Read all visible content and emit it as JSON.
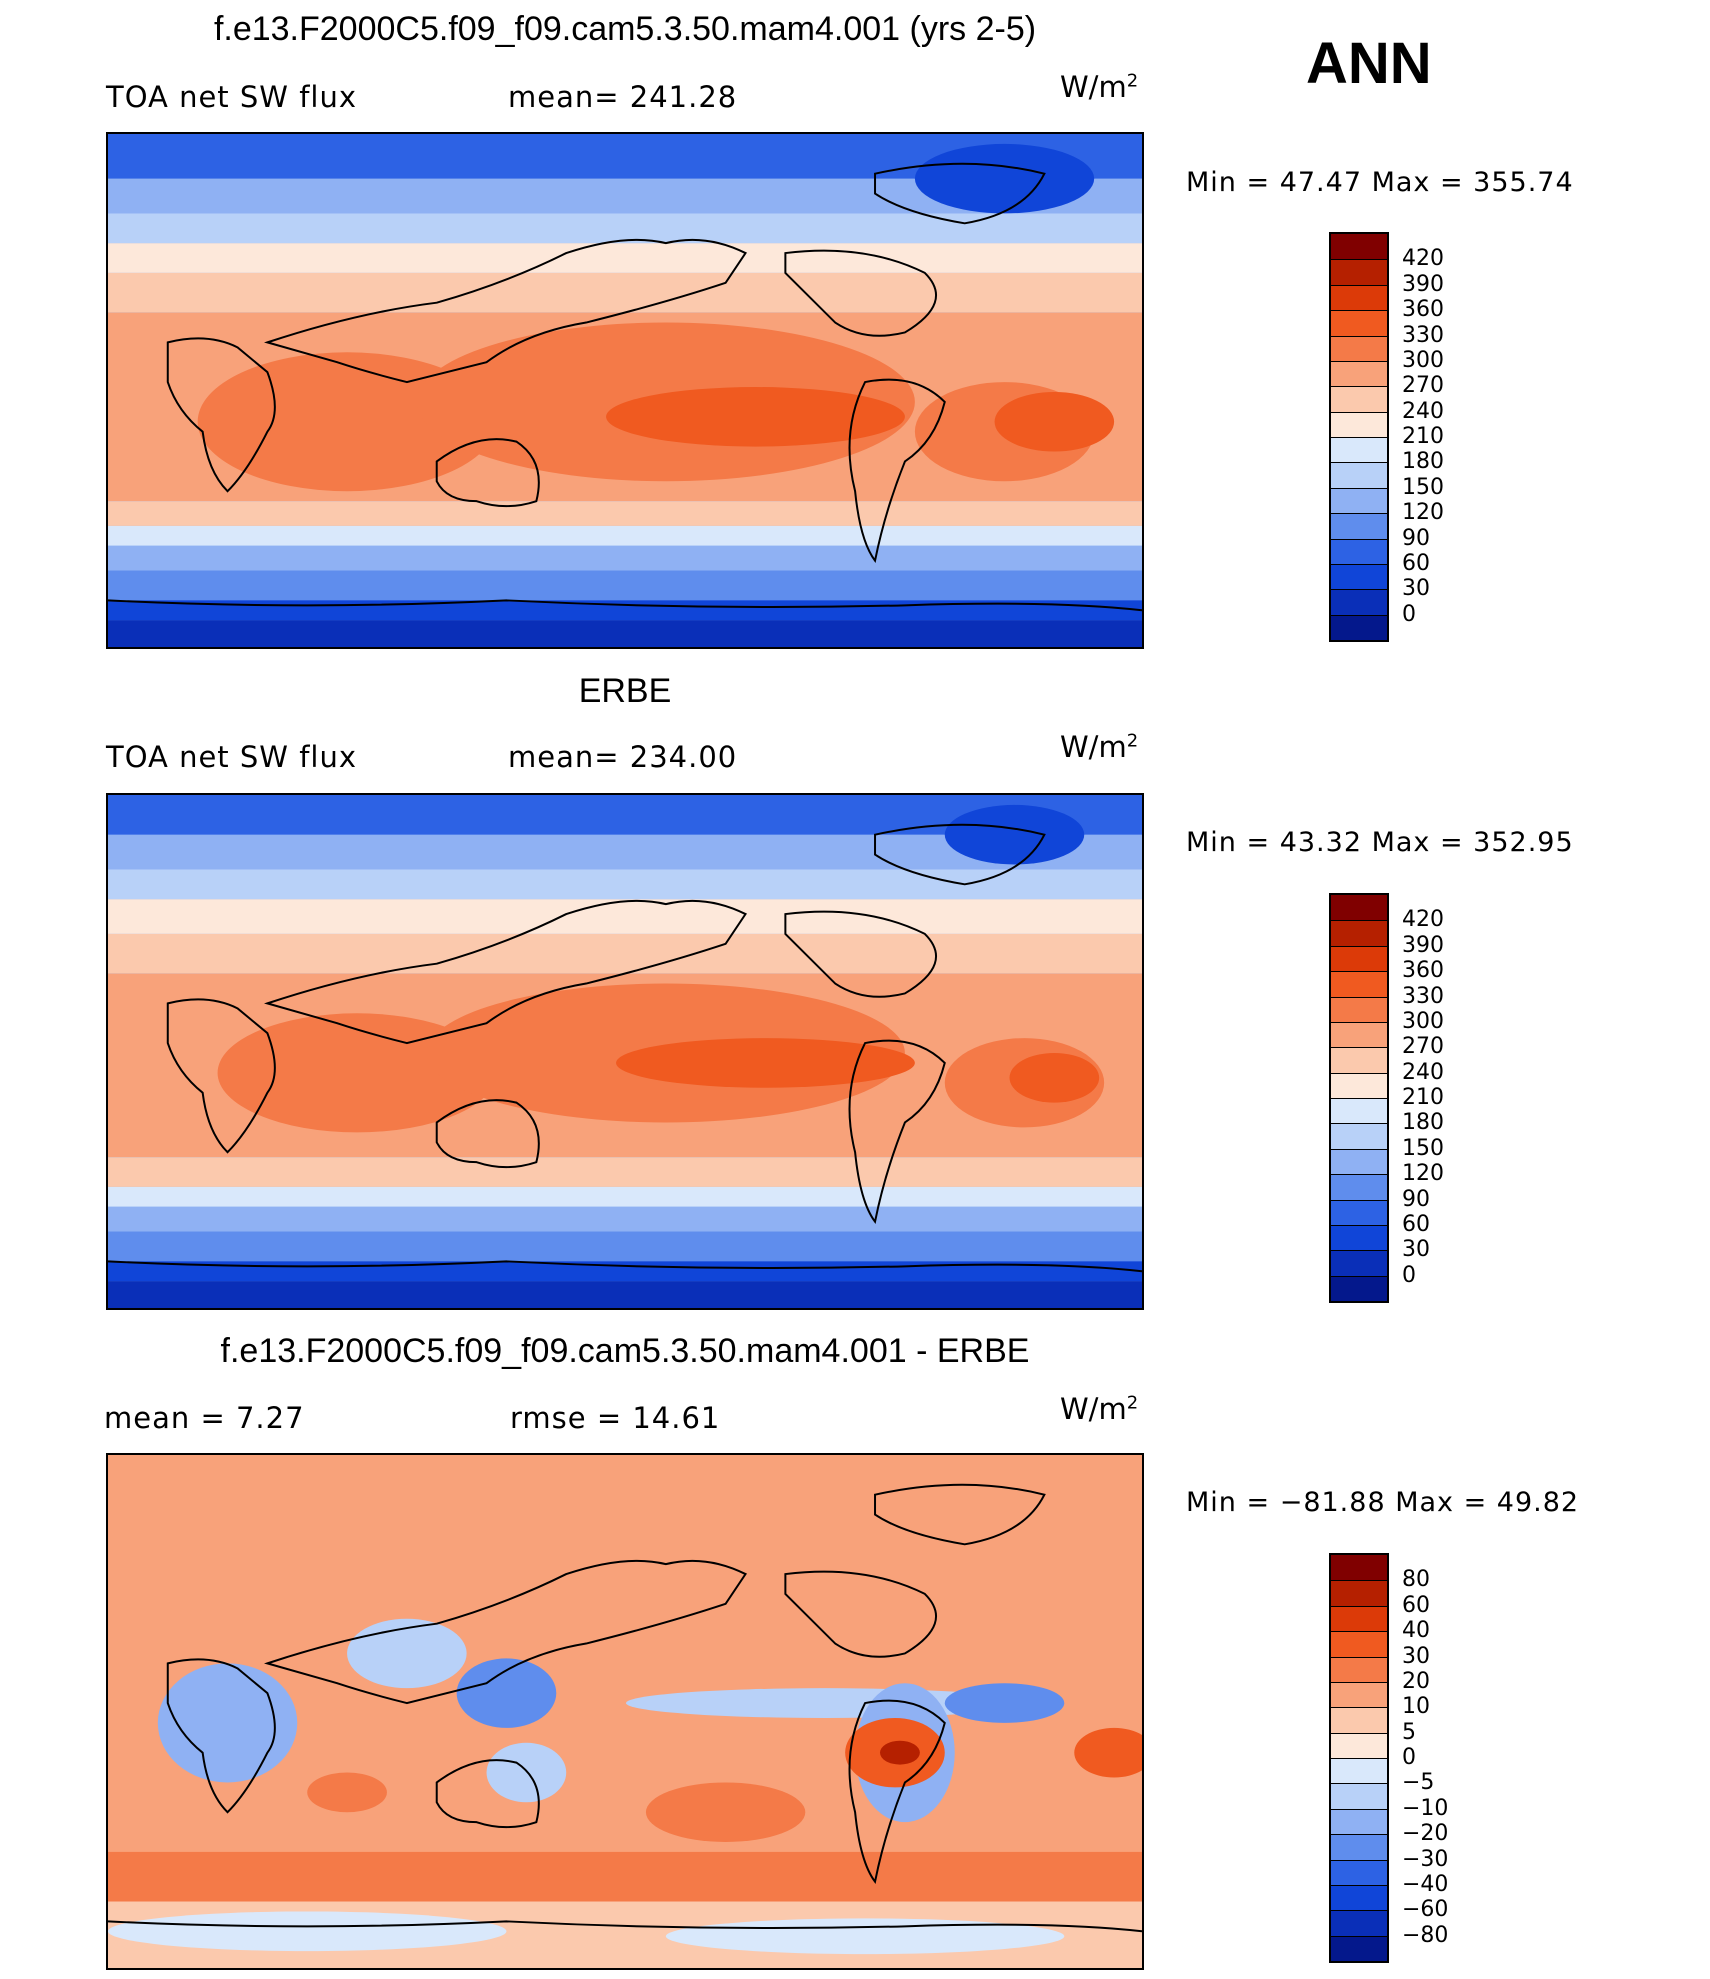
{
  "season": "ANN",
  "panels": [
    {
      "title": "f.e13.F2000C5.f09_f09.cam5.3.50.mam4.001 (yrs 2-5)",
      "left_label": "TOA net SW flux",
      "center_label": "mean= 241.28",
      "unit_base": "W/m",
      "unit_exp": "2",
      "minmax": "Min =   47.47 Max = 355.74",
      "colorbar": {
        "colors": [
          "#800000",
          "#b52000",
          "#dc3a08",
          "#f05a20",
          "#f47a48",
          "#f8a27a",
          "#fbc9ad",
          "#fde8da",
          "#d9e8fb",
          "#b8d1f8",
          "#8fb1f3",
          "#5f8ded",
          "#2d62e4",
          "#1045d8",
          "#0a2fb8",
          "#04188c"
        ],
        "ticks": [
          "420",
          "390",
          "360",
          "330",
          "300",
          "270",
          "240",
          "210",
          "180",
          "150",
          "120",
          "90",
          "60",
          "30",
          "0"
        ]
      }
    },
    {
      "title": "ERBE",
      "left_label": "TOA net SW flux",
      "center_label": "mean= 234.00",
      "unit_base": "W/m",
      "unit_exp": "2",
      "minmax": "Min =   43.32 Max = 352.95",
      "colorbar": {
        "colors": [
          "#800000",
          "#b52000",
          "#dc3a08",
          "#f05a20",
          "#f47a48",
          "#f8a27a",
          "#fbc9ad",
          "#fde8da",
          "#d9e8fb",
          "#b8d1f8",
          "#8fb1f3",
          "#5f8ded",
          "#2d62e4",
          "#1045d8",
          "#0a2fb8",
          "#04188c"
        ],
        "ticks": [
          "420",
          "390",
          "360",
          "330",
          "300",
          "270",
          "240",
          "210",
          "180",
          "150",
          "120",
          "90",
          "60",
          "30",
          "0"
        ]
      }
    },
    {
      "title": "f.e13.F2000C5.f09_f09.cam5.3.50.mam4.001 - ERBE",
      "left_label": "mean =    7.27",
      "center_label": "rmse =   14.61",
      "unit_base": "W/m",
      "unit_exp": "2",
      "minmax": "Min = −81.88 Max =   49.82",
      "colorbar": {
        "colors": [
          "#800000",
          "#b52000",
          "#dc3a08",
          "#f05a20",
          "#f47a48",
          "#f8a27a",
          "#fbc9ad",
          "#fde8da",
          "#d9e8fb",
          "#b8d1f8",
          "#8fb1f3",
          "#5f8ded",
          "#2d62e4",
          "#1045d8",
          "#0a2fb8",
          "#04188c"
        ],
        "ticks": [
          "80",
          "60",
          "40",
          "30",
          "20",
          "10",
          "5",
          "0",
          "−5",
          "−10",
          "−20",
          "−30",
          "−40",
          "−60",
          "−80"
        ]
      }
    }
  ]
}
